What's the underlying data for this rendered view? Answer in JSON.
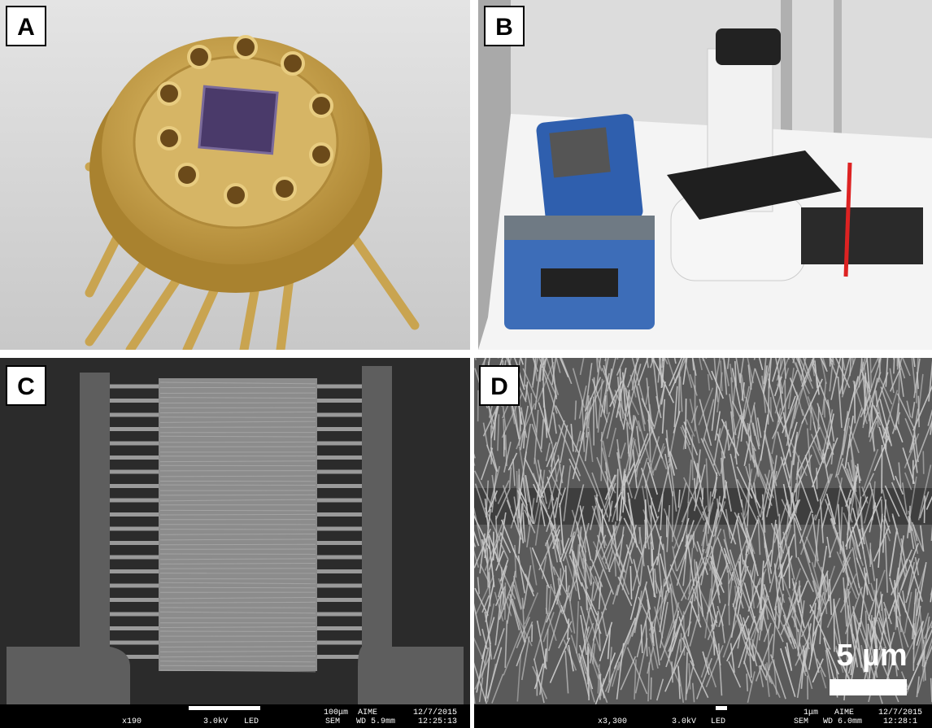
{
  "panels": [
    {
      "label": "A"
    },
    {
      "label": "B"
    },
    {
      "label": "C",
      "sem_info": {
        "magnification": "x190",
        "voltage": "3.0kV",
        "detector": "LED",
        "mode": "SEM",
        "scale": "100μm",
        "lab": "AIME",
        "wd": "WD 5.9mm",
        "date": "12/7/2015",
        "time": "12:25:13"
      }
    },
    {
      "label": "D",
      "sem_info": {
        "magnification": "x3,300",
        "voltage": "3.0kV",
        "detector": "LED",
        "mode": "SEM",
        "scale": "1μm",
        "lab": "AIME",
        "wd": "WD 6.0mm",
        "date": "12/7/2015",
        "time": "12:28:1"
      },
      "scale_label": "5 µm"
    }
  ]
}
